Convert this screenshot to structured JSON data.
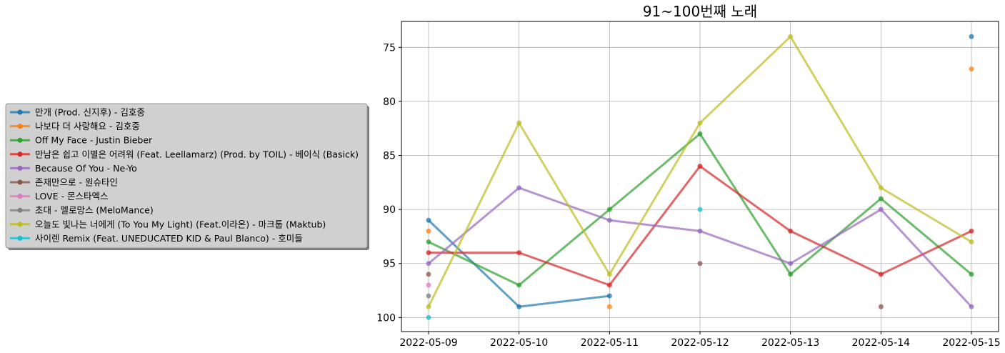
{
  "chart_data": {
    "type": "line",
    "title": "91~100번째 노래",
    "xlabel": "",
    "ylabel": "",
    "y_inverted": true,
    "ylim": [
      101.3,
      72.6
    ],
    "grid": true,
    "legend_placement": "left",
    "categories": [
      "2022-05-09",
      "2022-05-10",
      "2022-05-11",
      "2022-05-12",
      "2022-05-13",
      "2022-05-14",
      "2022-05-15"
    ],
    "y_ticks": [
      75,
      80,
      85,
      90,
      95,
      100
    ],
    "series": [
      {
        "name": "만개 (Prod. 신지후) - 김호중",
        "color": "#1f77b4",
        "values": [
          91,
          99,
          98,
          null,
          null,
          null,
          74
        ]
      },
      {
        "name": "나보다 더 사랑해요 - 김호중",
        "color": "#ff7f0e",
        "values": [
          92,
          null,
          99,
          null,
          null,
          null,
          77
        ]
      },
      {
        "name": "Off My Face - Justin Bieber",
        "color": "#2ca02c",
        "values": [
          93,
          97,
          90,
          83,
          96,
          89,
          96
        ]
      },
      {
        "name": "만남은 쉽고 이별은 어려워 (Feat. Leellamarz) (Prod. by TOIL) - 베이식 (Basick)",
        "color": "#d62728",
        "values": [
          94,
          94,
          97,
          86,
          92,
          96,
          92
        ]
      },
      {
        "name": "Because Of You - Ne-Yo",
        "color": "#9467bd",
        "values": [
          95,
          88,
          91,
          92,
          95,
          90,
          99
        ]
      },
      {
        "name": "존재만으로 - 원슈타인",
        "color": "#8c564b",
        "values": [
          96,
          null,
          null,
          95,
          null,
          99,
          null
        ]
      },
      {
        "name": "LOVE - 몬스타엑스",
        "color": "#e377c2",
        "values": [
          97,
          null,
          null,
          null,
          null,
          null,
          null
        ]
      },
      {
        "name": "초대 - 멜로망스 (MeloMance)",
        "color": "#7f7f7f",
        "values": [
          98,
          null,
          null,
          null,
          null,
          null,
          null
        ]
      },
      {
        "name": "오늘도 빛나는 너에게 (To You My Light) (Feat.이라온) - 마크툽 (Maktub)",
        "color": "#bcbd22",
        "values": [
          99,
          82,
          96,
          82,
          74,
          88,
          93
        ]
      },
      {
        "name": "사이렌 Remix (Feat. UNEDUCATED KID & Paul Blanco) - 호미들",
        "color": "#17becf",
        "values": [
          100,
          null,
          null,
          90,
          null,
          null,
          null
        ]
      }
    ]
  }
}
